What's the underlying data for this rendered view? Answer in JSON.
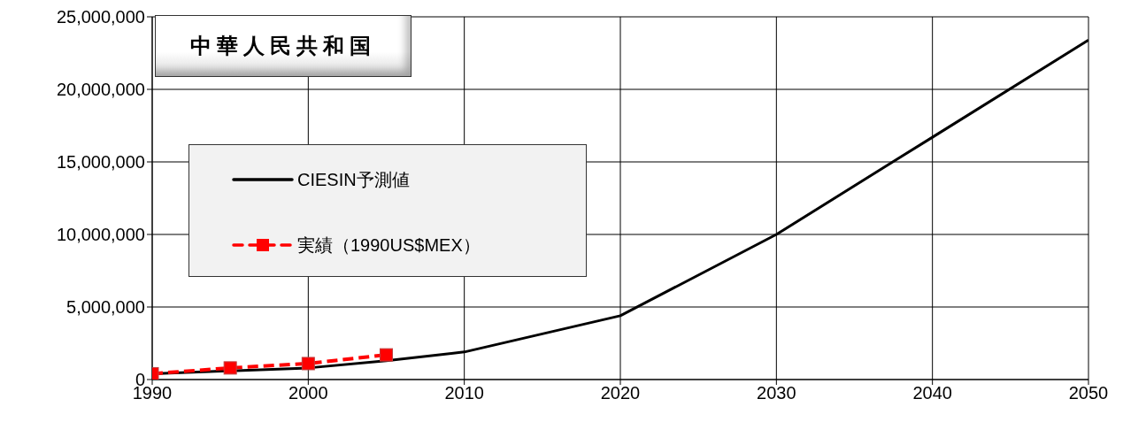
{
  "chart_data": {
    "type": "line",
    "title": "中華人民共和国",
    "series": [
      {
        "name": "CIESIN予測値",
        "color": "#000000",
        "marker": "none",
        "line_style": "solid",
        "x": [
          1990,
          1995,
          2000,
          2005,
          2010,
          2020,
          2030,
          2040,
          2050
        ],
        "values": [
          400000,
          600000,
          800000,
          1300000,
          1900000,
          4400000,
          10000000,
          16700000,
          23400000
        ]
      },
      {
        "name": "実績（1990US$MEX）",
        "color": "#ff0000",
        "marker": "square",
        "line_style": "dashed",
        "x": [
          1990,
          1995,
          2000,
          2005
        ],
        "values": [
          400000,
          800000,
          1100000,
          1700000
        ]
      }
    ],
    "xlim": [
      1990,
      2050
    ],
    "xticks": [
      1990,
      2000,
      2010,
      2020,
      2030,
      2040,
      2050
    ],
    "ylim": [
      0,
      25000000
    ],
    "yticks": [
      {
        "value": 0,
        "label": "0"
      },
      {
        "value": 5000000,
        "label": "5,000,000"
      },
      {
        "value": 10000000,
        "label": "10,000,000"
      },
      {
        "value": 15000000,
        "label": "15,000,000"
      },
      {
        "value": 20000000,
        "label": "20,000,000"
      },
      {
        "value": 25000000,
        "label": "25,000,000"
      }
    ],
    "grid": true,
    "legend": "left"
  }
}
